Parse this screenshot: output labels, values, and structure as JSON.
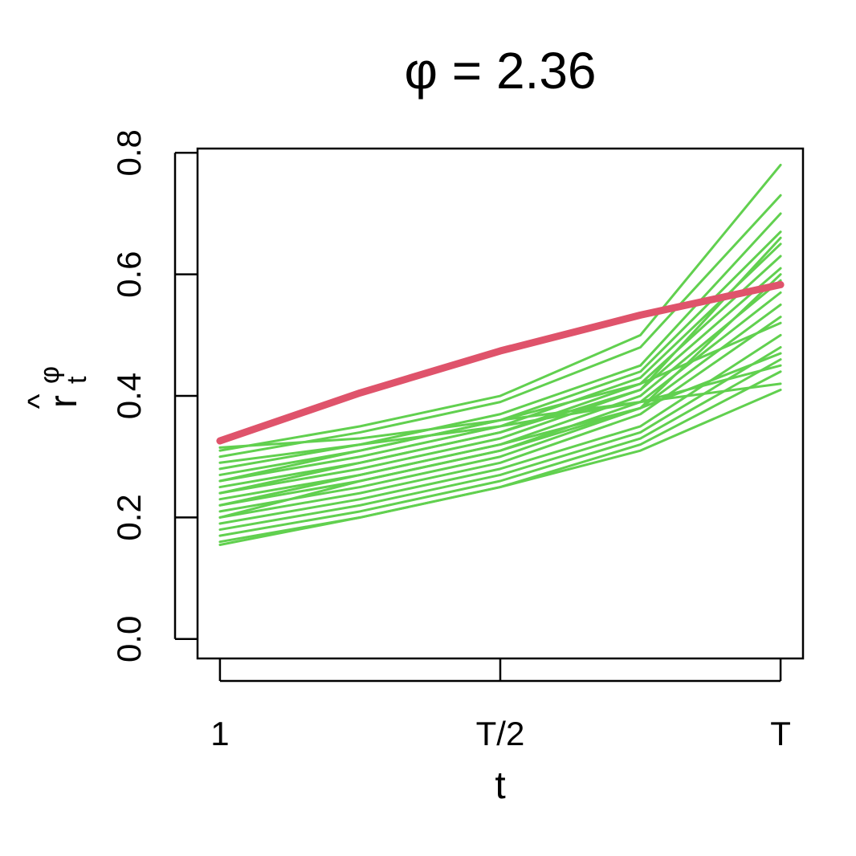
{
  "chart_data": {
    "type": "line",
    "title": "φ = 2.36",
    "xlabel": "t",
    "ylabel": "r",
    "ylabel_accent": "^",
    "ylabel_sub": "t",
    "ylabel_sup": "φ",
    "x": [
      0,
      0.25,
      0.5,
      0.75,
      1
    ],
    "xlim": [
      -0.04,
      1.04
    ],
    "xticks": [
      {
        "value": 0,
        "label": "1"
      },
      {
        "value": 0.5,
        "label": "T/2"
      },
      {
        "value": 1,
        "label": "T"
      }
    ],
    "ylim": [
      -0.032,
      0.807
    ],
    "yticks": [
      {
        "value": 0,
        "label": "0.0"
      },
      {
        "value": 0.2,
        "label": "0.2"
      },
      {
        "value": 0.4,
        "label": "0.4"
      },
      {
        "value": 0.6,
        "label": "0.6"
      },
      {
        "value": 0.8,
        "label": "0.8"
      }
    ],
    "series": [
      {
        "color": "#61D04F",
        "values": [
          0.31,
          0.35,
          0.4,
          0.5,
          0.78
        ]
      },
      {
        "color": "#61D04F",
        "values": [
          0.3,
          0.34,
          0.39,
          0.48,
          0.73
        ]
      },
      {
        "color": "#61D04F",
        "values": [
          0.28,
          0.32,
          0.37,
          0.45,
          0.7
        ]
      },
      {
        "color": "#61D04F",
        "values": [
          0.27,
          0.31,
          0.36,
          0.44,
          0.67
        ]
      },
      {
        "color": "#61D04F",
        "values": [
          0.26,
          0.3,
          0.35,
          0.43,
          0.65
        ]
      },
      {
        "color": "#61D04F",
        "values": [
          0.25,
          0.29,
          0.34,
          0.42,
          0.63
        ]
      },
      {
        "color": "#61D04F",
        "values": [
          0.24,
          0.28,
          0.33,
          0.41,
          0.61
        ]
      },
      {
        "color": "#61D04F",
        "values": [
          0.23,
          0.27,
          0.32,
          0.4,
          0.59
        ]
      },
      {
        "color": "#61D04F",
        "values": [
          0.22,
          0.26,
          0.31,
          0.39,
          0.57
        ]
      },
      {
        "color": "#61D04F",
        "values": [
          0.21,
          0.25,
          0.3,
          0.38,
          0.55
        ]
      },
      {
        "color": "#61D04F",
        "values": [
          0.2,
          0.24,
          0.29,
          0.37,
          0.53
        ]
      },
      {
        "color": "#61D04F",
        "values": [
          0.19,
          0.23,
          0.28,
          0.35,
          0.5
        ]
      },
      {
        "color": "#61D04F",
        "values": [
          0.18,
          0.22,
          0.27,
          0.34,
          0.48
        ]
      },
      {
        "color": "#61D04F",
        "values": [
          0.17,
          0.21,
          0.26,
          0.33,
          0.46
        ]
      },
      {
        "color": "#61D04F",
        "values": [
          0.16,
          0.2,
          0.25,
          0.32,
          0.44
        ]
      },
      {
        "color": "#61D04F",
        "values": [
          0.155,
          0.2,
          0.25,
          0.31,
          0.41
        ]
      },
      {
        "color": "#61D04F",
        "values": [
          0.315,
          0.33,
          0.36,
          0.39,
          0.42
        ]
      },
      {
        "color": "#61D04F",
        "values": [
          0.29,
          0.32,
          0.35,
          0.39,
          0.45
        ]
      },
      {
        "color": "#61D04F",
        "values": [
          0.22,
          0.27,
          0.32,
          0.38,
          0.47
        ]
      },
      {
        "color": "#61D04F",
        "values": [
          0.26,
          0.31,
          0.36,
          0.42,
          0.52
        ]
      },
      {
        "color": "#61D04F",
        "values": [
          0.2,
          0.26,
          0.31,
          0.38,
          0.6
        ]
      },
      {
        "color": "#61D04F",
        "values": [
          0.24,
          0.29,
          0.34,
          0.41,
          0.66
        ]
      },
      {
        "color": "#DF536B",
        "values": [
          0.326,
          0.405,
          0.474,
          0.533,
          0.583
        ]
      }
    ]
  }
}
